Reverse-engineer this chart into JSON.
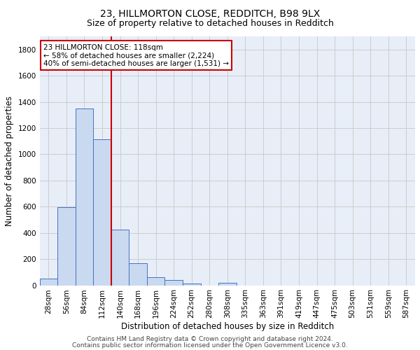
{
  "title1": "23, HILLMORTON CLOSE, REDDITCH, B98 9LX",
  "title2": "Size of property relative to detached houses in Redditch",
  "xlabel": "Distribution of detached houses by size in Redditch",
  "ylabel": "Number of detached properties",
  "bin_labels": [
    "28sqm",
    "56sqm",
    "84sqm",
    "112sqm",
    "140sqm",
    "168sqm",
    "196sqm",
    "224sqm",
    "252sqm",
    "280sqm",
    "308sqm",
    "335sqm",
    "363sqm",
    "391sqm",
    "419sqm",
    "447sqm",
    "475sqm",
    "503sqm",
    "531sqm",
    "559sqm",
    "587sqm"
  ],
  "bar_heights": [
    50,
    595,
    1350,
    1115,
    425,
    170,
    60,
    38,
    15,
    0,
    18,
    0,
    0,
    0,
    0,
    0,
    0,
    0,
    0,
    0,
    0
  ],
  "bar_color": "#c9d9f0",
  "bar_edge_color": "#4472c4",
  "annotation_text": "23 HILLMORTON CLOSE: 118sqm\n← 58% of detached houses are smaller (2,224)\n40% of semi-detached houses are larger (1,531) →",
  "annotation_box_color": "#ffffff",
  "annotation_box_edge_color": "#cc0000",
  "vline_color": "#cc0000",
  "ylim": [
    0,
    1900
  ],
  "yticks": [
    0,
    200,
    400,
    600,
    800,
    1000,
    1200,
    1400,
    1600,
    1800
  ],
  "grid_color": "#cccccc",
  "background_color": "#e8eef8",
  "footer1": "Contains HM Land Registry data © Crown copyright and database right 2024.",
  "footer2": "Contains public sector information licensed under the Open Government Licence v3.0.",
  "title1_fontsize": 10,
  "title2_fontsize": 9,
  "xlabel_fontsize": 8.5,
  "ylabel_fontsize": 8.5,
  "tick_fontsize": 7.5,
  "footer_fontsize": 6.5
}
